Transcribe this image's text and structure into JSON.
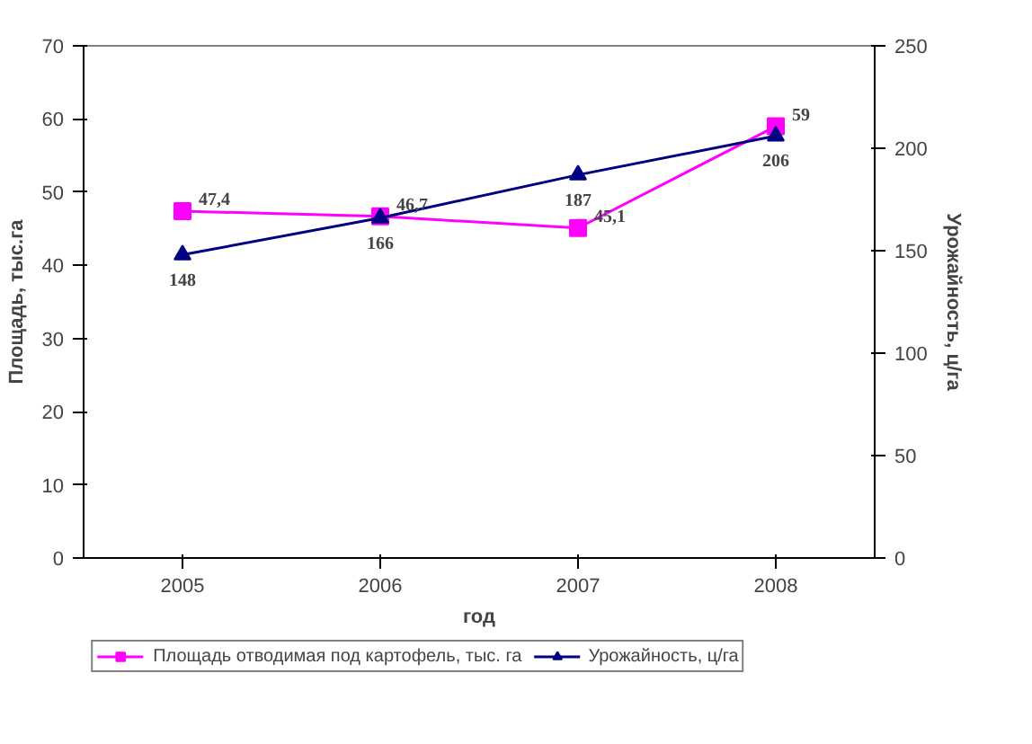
{
  "chart_data": {
    "type": "line",
    "xlabel": "год",
    "ylabel": "Площадь, тыс.га",
    "y2label": "Урожайность, ц/га",
    "categories": [
      "2005",
      "2006",
      "2007",
      "2008"
    ],
    "series": [
      {
        "name": "Площадь отводимая под картофель, тыс. га",
        "color": "#ff00ff",
        "marker": "square",
        "values": [
          47.4,
          46.7,
          45.1,
          59
        ],
        "value_labels": [
          "47,4",
          "46,7",
          "45,1",
          "59"
        ]
      },
      {
        "name": "Урожайность, ц/га",
        "color": "#000080",
        "marker": "triangle",
        "axis": "y2",
        "values": [
          148,
          166,
          187,
          206
        ],
        "value_labels": [
          "148",
          "166",
          "187",
          "206"
        ]
      }
    ],
    "ylim": [
      0,
      70
    ],
    "yticks": [
      0,
      10,
      20,
      30,
      40,
      50,
      60,
      70
    ],
    "y2lim": [
      0,
      250
    ],
    "y2ticks": [
      0,
      50,
      100,
      150,
      200,
      250
    ],
    "grid": false,
    "legend": "bottom",
    "line_style": "solid"
  }
}
